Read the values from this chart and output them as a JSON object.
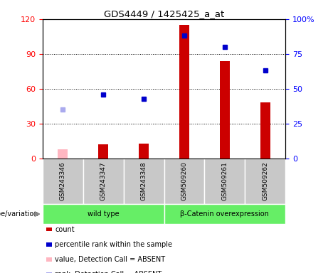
{
  "title": "GDS4449 / 1425425_a_at",
  "samples": [
    "GSM243346",
    "GSM243347",
    "GSM243348",
    "GSM509260",
    "GSM509261",
    "GSM509262"
  ],
  "count_values": [
    null,
    12,
    13,
    115,
    84,
    48
  ],
  "count_absent": [
    8,
    null,
    null,
    null,
    null,
    null
  ],
  "rank_values": [
    null,
    46,
    43,
    88,
    80,
    63
  ],
  "rank_absent": [
    35,
    null,
    null,
    null,
    null,
    null
  ],
  "left_ylim": [
    0,
    120
  ],
  "right_ylim": [
    0,
    100
  ],
  "left_yticks": [
    0,
    30,
    60,
    90,
    120
  ],
  "left_yticklabels": [
    "0",
    "30",
    "60",
    "90",
    "120"
  ],
  "right_yticks": [
    0,
    25,
    50,
    75,
    100
  ],
  "right_yticklabels": [
    "0",
    "25",
    "50",
    "75",
    "100%"
  ],
  "bar_color": "#cc0000",
  "bar_absent_color": "#ffb6c1",
  "rank_color": "#0000cc",
  "rank_absent_color": "#aaaaee",
  "bg_color": "#c8c8c8",
  "group_green": "#66ee66",
  "bar_width": 0.25,
  "legend_items": [
    {
      "label": "count",
      "color": "#cc0000"
    },
    {
      "label": "percentile rank within the sample",
      "color": "#0000cc"
    },
    {
      "label": "value, Detection Call = ABSENT",
      "color": "#ffb6c1"
    },
    {
      "label": "rank, Detection Call = ABSENT",
      "color": "#aaaaee"
    }
  ]
}
